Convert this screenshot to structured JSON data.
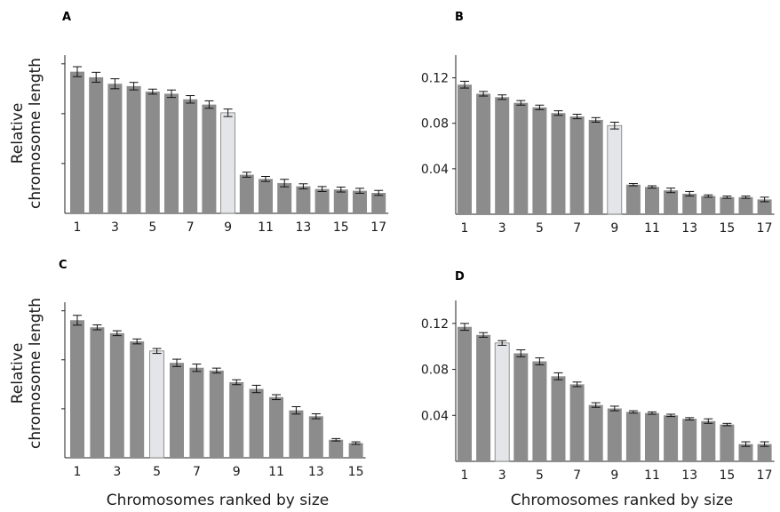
{
  "figure": {
    "ylabel_left_line1": "Relative",
    "ylabel_left_line2": "chromosome length",
    "xlabel": "Chromosomes ranked by size"
  },
  "colors": {
    "bar": "#8c8c8c",
    "highlight": "#e3e5e8",
    "highlight_stroke": "#7a7a7a",
    "axis": "#222222"
  },
  "chart_data": [
    {
      "type": "bar",
      "panel": "A",
      "categories": [
        "1",
        "2",
        "3",
        "4",
        "5",
        "6",
        "7",
        "8",
        "9",
        "10",
        "11",
        "12",
        "13",
        "14",
        "15",
        "16",
        "17"
      ],
      "x_tick_labels": [
        "1",
        "3",
        "5",
        "7",
        "9",
        "11",
        "13",
        "15",
        "17"
      ],
      "values": [
        0.1137,
        0.1092,
        0.104,
        0.1021,
        0.0977,
        0.096,
        0.0915,
        0.0873,
        0.0807,
        0.031,
        0.0276,
        0.0243,
        0.0217,
        0.0195,
        0.0191,
        0.0181,
        0.0164
      ],
      "errors": [
        0.004,
        0.004,
        0.004,
        0.003,
        0.002,
        0.003,
        0.003,
        0.003,
        0.003,
        0.002,
        0.002,
        0.003,
        0.002,
        0.002,
        0.002,
        0.002,
        0.002
      ],
      "highlight_index": 8,
      "ylim": [
        0,
        0.127
      ],
      "y_ticks": [
        0.04,
        0.08,
        0.12
      ],
      "y_tick_labels": [
        "",
        "",
        ""
      ]
    },
    {
      "type": "bar",
      "panel": "B",
      "categories": [
        "1",
        "2",
        "3",
        "4",
        "5",
        "6",
        "7",
        "8",
        "9",
        "10",
        "11",
        "12",
        "13",
        "14",
        "15",
        "16",
        "17"
      ],
      "x_tick_labels": [
        "1",
        "3",
        "5",
        "7",
        "9",
        "11",
        "13",
        "15",
        "17"
      ],
      "values": [
        0.114,
        0.106,
        0.103,
        0.098,
        0.094,
        0.089,
        0.086,
        0.083,
        0.078,
        0.026,
        0.024,
        0.021,
        0.018,
        0.016,
        0.015,
        0.015,
        0.013
      ],
      "errors": [
        0.003,
        0.002,
        0.002,
        0.002,
        0.002,
        0.002,
        0.002,
        0.002,
        0.003,
        0.001,
        0.001,
        0.002,
        0.002,
        0.001,
        0.001,
        0.001,
        0.002
      ],
      "highlight_index": 8,
      "ylim": [
        0,
        0.14
      ],
      "y_ticks": [
        0.04,
        0.08,
        0.12
      ],
      "y_tick_labels": [
        "0.04",
        "0.08",
        "0.12"
      ]
    },
    {
      "type": "bar",
      "panel": "C",
      "categories": [
        "1",
        "2",
        "3",
        "4",
        "5",
        "6",
        "7",
        "8",
        "9",
        "10",
        "11",
        "12",
        "13",
        "14",
        "15"
      ],
      "x_tick_labels": [
        "1",
        "3",
        "5",
        "7",
        "9",
        "11",
        "13",
        "15"
      ],
      "values": [
        0.1123,
        0.1065,
        0.1017,
        0.095,
        0.0872,
        0.0775,
        0.0735,
        0.0712,
        0.0617,
        0.0562,
        0.0495,
        0.0387,
        0.0339,
        0.0147,
        0.012
      ],
      "errors": [
        0.004,
        0.002,
        0.002,
        0.002,
        0.002,
        0.003,
        0.003,
        0.002,
        0.002,
        0.003,
        0.002,
        0.003,
        0.002,
        0.001,
        0.001
      ],
      "highlight_index": 4,
      "ylim": [
        0,
        0.127
      ],
      "y_ticks": [
        0.04,
        0.08,
        0.12
      ],
      "y_tick_labels": [
        "",
        "",
        ""
      ]
    },
    {
      "type": "bar",
      "panel": "D",
      "categories": [
        "1",
        "2",
        "3",
        "4",
        "5",
        "6",
        "7",
        "8",
        "9",
        "10",
        "11",
        "12",
        "13",
        "14",
        "15",
        "16",
        "17"
      ],
      "x_tick_labels": [
        "1",
        "3",
        "5",
        "7",
        "9",
        "11",
        "13",
        "15",
        "17"
      ],
      "values": [
        0.117,
        0.11,
        0.103,
        0.094,
        0.087,
        0.074,
        0.067,
        0.049,
        0.046,
        0.043,
        0.042,
        0.04,
        0.037,
        0.035,
        0.032,
        0.015,
        0.015
      ],
      "errors": [
        0.003,
        0.002,
        0.002,
        0.003,
        0.003,
        0.003,
        0.002,
        0.002,
        0.002,
        0.001,
        0.001,
        0.001,
        0.001,
        0.002,
        0.001,
        0.002,
        0.002
      ],
      "highlight_index": 2,
      "ylim": [
        0,
        0.14
      ],
      "y_ticks": [
        0.04,
        0.08,
        0.12
      ],
      "y_tick_labels": [
        "0.04",
        "0.08",
        "0.12"
      ]
    }
  ]
}
